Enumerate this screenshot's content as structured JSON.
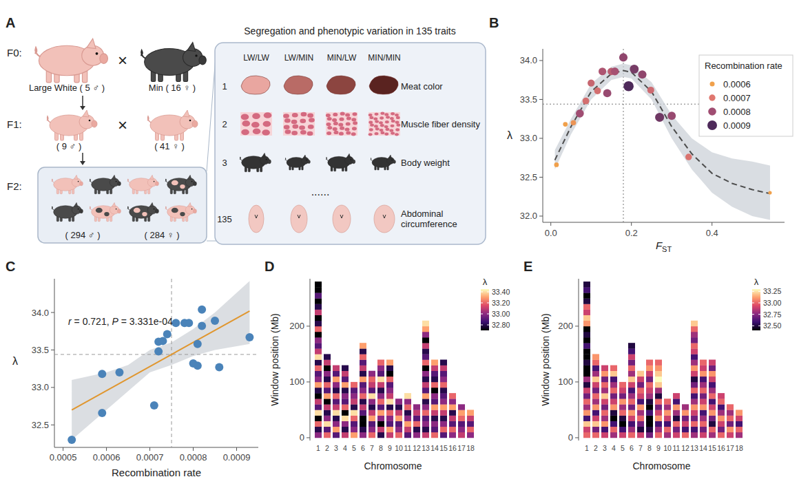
{
  "panel_labels": [
    "A",
    "B",
    "C",
    "D",
    "E"
  ],
  "diagram": {
    "generations": [
      {
        "label": "F0:",
        "groups": [
          {
            "label": "Large White ( 5 ♂ )"
          },
          {
            "label": "Min ( 16 ♀ )"
          }
        ]
      },
      {
        "label": "F1:",
        "groups": [
          {
            "label": "( 9 ♂ )"
          },
          {
            "label": "( 41 ♀ )"
          }
        ]
      },
      {
        "label": "F2:",
        "groups": [
          {
            "label": "( 294 ♂ )"
          },
          {
            "label": "( 284 ♀ )"
          }
        ]
      }
    ],
    "cross_symbol": "×",
    "traits_box": {
      "title": "Segregation and phenotypic variation in 135 traits",
      "genotypes": [
        "LW/LW",
        "LW/MIN",
        "MIN/LW",
        "MIN/MIN"
      ],
      "traits": [
        {
          "number": "1",
          "name": "Meat color"
        },
        {
          "number": "2",
          "name": "Muscle fiber density"
        },
        {
          "number": "3",
          "name": "Body weight"
        },
        {
          "number": "135",
          "name": "Abdominal circumference"
        }
      ],
      "ellipsis": "......"
    }
  },
  "chart_data": [
    {
      "type": "scatter",
      "x_label": "FST",
      "y_label": "λ",
      "xlim": [
        -0.02,
        0.58
      ],
      "ylim": [
        31.92,
        34.15
      ],
      "xticks": [
        {
          "value": 0,
          "label": "0.0"
        },
        0.2,
        0.4
      ],
      "yticks": [
        {
          "value": 32,
          "label": "32.0"
        },
        32.5,
        {
          "value": 33,
          "label": "33.0"
        },
        33.5,
        {
          "value": 34,
          "label": "34.0"
        }
      ],
      "x": [
        0.014,
        0.036,
        0.056,
        0.072,
        0.087,
        0.1,
        0.116,
        0.128,
        0.14,
        0.15,
        0.159,
        0.18,
        0.193,
        0.207,
        0.227,
        0.248,
        0.27,
        0.3,
        0.342,
        0.544
      ],
      "values": [
        32.66,
        33.18,
        33.2,
        33.32,
        33.48,
        33.71,
        33.61,
        33.86,
        33.58,
        33.86,
        33.86,
        34.04,
        33.67,
        33.89,
        33.82,
        33.62,
        33.27,
        33.29,
        32.76,
        32.3
      ],
      "recombination_rate": [
        0.00059,
        0.00059,
        0.00063,
        0.0008,
        0.00072,
        0.00074,
        0.00072,
        0.00078,
        0.00081,
        0.00076,
        0.00079,
        0.00082,
        0.00093,
        0.00085,
        0.00082,
        0.00073,
        0.00086,
        0.00081,
        0.00071,
        0.00052
      ],
      "fit": {
        "x": [
          0.01,
          0.05,
          0.1,
          0.15,
          0.18,
          0.2,
          0.25,
          0.3,
          0.35,
          0.4,
          0.45,
          0.5,
          0.544
        ],
        "values": [
          32.72,
          33.15,
          33.6,
          33.83,
          33.87,
          33.85,
          33.6,
          33.15,
          32.8,
          32.55,
          32.42,
          32.34,
          32.29
        ],
        "lower": [
          32.6,
          33.05,
          33.5,
          33.75,
          33.79,
          33.77,
          33.5,
          33.0,
          32.6,
          32.3,
          32.12,
          32.0,
          31.95
        ],
        "upper": [
          32.85,
          33.25,
          33.7,
          33.92,
          33.96,
          33.94,
          33.72,
          33.3,
          33.0,
          32.82,
          32.74,
          32.7,
          32.65
        ]
      },
      "reference_lines": {
        "x": 0.18,
        "y": 33.44
      },
      "legend": "top-right",
      "color_scale": {
        "title": "Recombination rate",
        "values": [
          0.0006,
          0.0007,
          0.0008,
          0.0009
        ],
        "colors": [
          "#f0a04b",
          "#e0776f",
          "#a04d72",
          "#4e2a5a"
        ]
      }
    },
    {
      "type": "scatter",
      "x_label": "Recombination rate",
      "y_label": "λ",
      "xlim": [
        0.00048,
        0.00095
      ],
      "ylim": [
        32.2,
        34.45
      ],
      "xticks": [
        0.0005,
        0.0006,
        0.0007,
        0.0008,
        0.0009
      ],
      "yticks": [
        32.5,
        {
          "value": 33,
          "label": "33.0"
        },
        33.5,
        {
          "value": 34,
          "label": "34.0"
        }
      ],
      "color": "#4a83b9",
      "x": [
        0.00059,
        0.00059,
        0.00063,
        0.0008,
        0.00072,
        0.00074,
        0.00072,
        0.00078,
        0.00081,
        0.00076,
        0.00079,
        0.00082,
        0.00093,
        0.00085,
        0.00082,
        0.00073,
        0.00086,
        0.00081,
        0.00071,
        0.00052
      ],
      "values": [
        32.66,
        33.18,
        33.2,
        33.32,
        33.48,
        33.71,
        33.61,
        33.86,
        33.58,
        33.86,
        33.86,
        34.04,
        33.67,
        33.89,
        33.82,
        33.62,
        33.27,
        33.29,
        32.76,
        32.3
      ],
      "fit": {
        "x": [
          0.00052,
          0.00093
        ],
        "values": [
          32.7,
          34.02
        ],
        "color": "#e0962e"
      },
      "ci": {
        "x": [
          0.00052,
          0.0006,
          0.00065,
          0.0007,
          0.00075,
          0.0008,
          0.00085,
          0.00093
        ],
        "lower": [
          32.3,
          32.7,
          32.95,
          33.2,
          33.3,
          33.42,
          33.5,
          33.58
        ],
        "upper": [
          33.1,
          33.2,
          33.3,
          33.5,
          33.6,
          33.78,
          34.0,
          34.42
        ]
      },
      "annotation": "r = 0.721, P = 3.331e-04",
      "reference_lines": {
        "x": 0.00075,
        "y": 33.44
      }
    },
    {
      "type": "heatmap",
      "x_label": "Chromosome",
      "y_label": "Window position (Mb)",
      "categories": [
        "1",
        "2",
        "3",
        "4",
        "5",
        "6",
        "7",
        "8",
        "9",
        "10",
        "11",
        "12",
        "13",
        "14",
        "15",
        "16",
        "17",
        "18"
      ],
      "window_size": 10,
      "ylim": [
        -5,
        285
      ],
      "yticks": [
        0,
        100,
        200
      ],
      "cells": [
        [
          33.0,
          32.8,
          33.2,
          32.7,
          33.4,
          32.9,
          33.1,
          32.7,
          32.8,
          33.3,
          33.0,
          32.9,
          33.2,
          32.8,
          33.4,
          33.1,
          32.9,
          33.0,
          32.7,
          33.2,
          32.8,
          32.7,
          33.1,
          32.8,
          32.7,
          32.9,
          32.7,
          32.7
        ],
        [
          33.2,
          32.9,
          33.4,
          33.0,
          32.8,
          33.1,
          32.7,
          33.3,
          32.9,
          33.2,
          32.8,
          33.0,
          32.7,
          33.1,
          32.8
        ],
        [
          32.9,
          33.3,
          33.0,
          32.8,
          33.4,
          33.1,
          32.9,
          33.2,
          32.8,
          33.0,
          33.3,
          32.9,
          33.1
        ],
        [
          33.1,
          32.8,
          33.0,
          33.4,
          32.7,
          33.2,
          32.9,
          33.0,
          32.8,
          33.3,
          32.9,
          33.1,
          32.8
        ],
        [
          33.3,
          33.0,
          32.9,
          33.2,
          33.4,
          32.8,
          33.1,
          33.0,
          32.9,
          33.2
        ],
        [
          33.0,
          32.8,
          32.7,
          32.7,
          32.9,
          33.1,
          32.8,
          33.2,
          33.0,
          32.9,
          33.3,
          32.8,
          33.1,
          32.9,
          33.2,
          32.8,
          33.3
        ],
        [
          33.2,
          33.0,
          32.9,
          33.3,
          33.1,
          32.8,
          33.0,
          33.4,
          32.9,
          33.1,
          33.2,
          33.0
        ],
        [
          32.8,
          33.1,
          32.7,
          33.0,
          33.3,
          32.9,
          33.2,
          33.0,
          32.8,
          33.1,
          33.4,
          32.9,
          33.0,
          33.2
        ],
        [
          33.1,
          33.3,
          32.9,
          33.0,
          33.2,
          32.8,
          33.4,
          33.1,
          33.0,
          32.9,
          33.2,
          32.7,
          32.8,
          33.3
        ],
        [
          33.2,
          33.0,
          32.9,
          33.3,
          33.1,
          32.8,
          33.0
        ],
        [
          32.9,
          33.1,
          33.3,
          33.0,
          32.8,
          33.2,
          33.0,
          33.4
        ],
        [
          33.0,
          32.8,
          33.2,
          32.9,
          33.1,
          33.0
        ],
        [
          33.1,
          32.8,
          33.0,
          32.9,
          33.2,
          33.0,
          32.8,
          33.3,
          32.9,
          33.1,
          32.8,
          33.0,
          32.7,
          33.2,
          32.9,
          32.8,
          33.1,
          32.7,
          33.0,
          33.3,
          33.4
        ],
        [
          33.2,
          32.9,
          33.0,
          32.8,
          33.1,
          33.3,
          32.9,
          33.0,
          32.7,
          33.2,
          32.8,
          32.9,
          33.1,
          33.3
        ],
        [
          32.9,
          33.2,
          33.0,
          32.8,
          33.1,
          33.3,
          33.0,
          32.9,
          32.8,
          33.2,
          33.0,
          32.9,
          33.1,
          32.8
        ],
        [
          33.0,
          33.2,
          32.9,
          33.1,
          32.8,
          33.3,
          33.0,
          33.2
        ],
        [
          33.1,
          33.0,
          32.9,
          33.2,
          33.3,
          33.0
        ],
        [
          33.0,
          33.2,
          32.9,
          33.1,
          33.3
        ]
      ],
      "color_scale": {
        "title": "λ",
        "range": [
          32.7,
          33.45
        ],
        "ticks": [
          {
            "value": 33.4,
            "label": "33.40"
          },
          {
            "value": 33.2,
            "label": "33.20"
          },
          {
            "value": 33.0,
            "label": "33.00"
          },
          {
            "value": 32.8,
            "label": "32.80"
          }
        ],
        "colors": [
          "#000004",
          "#3b0f70",
          "#8c2981",
          "#de4968",
          "#fe9f6d",
          "#fcfdbf"
        ]
      }
    },
    {
      "type": "heatmap",
      "x_label": "Chromosome",
      "y_label": "Window position (Mb)",
      "categories": [
        "1",
        "2",
        "3",
        "4",
        "5",
        "6",
        "7",
        "8",
        "9",
        "10",
        "11",
        "12",
        "13",
        "14",
        "15",
        "16",
        "17",
        "18"
      ],
      "window_size": 10,
      "ylim": [
        -5,
        285
      ],
      "yticks": [
        0,
        100,
        200
      ],
      "cells": [
        [
          33.0,
          32.9,
          33.2,
          32.6,
          33.1,
          32.8,
          33.0,
          32.7,
          32.9,
          32.5,
          32.8,
          32.4,
          32.4,
          32.5,
          32.4,
          32.4,
          32.6,
          32.4,
          32.5,
          32.4,
          33.1,
          33.2,
          32.9,
          33.0,
          32.5,
          32.4,
          32.6,
          32.5
        ],
        [
          33.0,
          32.7,
          33.2,
          32.9,
          32.6,
          33.1,
          32.8,
          33.0,
          32.7,
          32.9,
          33.2,
          32.8,
          32.6,
          33.0,
          33.1
        ],
        [
          32.9,
          32.6,
          33.1,
          32.8,
          33.0,
          32.7,
          32.9,
          33.2,
          32.8,
          33.0,
          32.7,
          33.1,
          32.9
        ],
        [
          32.8,
          33.0,
          32.6,
          32.4,
          32.5,
          33.1,
          32.9,
          32.7,
          33.0,
          32.8,
          32.6,
          33.2,
          33.0
        ],
        [
          32.9,
          32.6,
          32.4,
          32.5,
          33.0,
          32.8,
          33.1,
          32.7,
          32.9,
          33.0
        ],
        [
          33.0,
          32.8,
          32.6,
          32.9,
          33.1,
          32.7,
          33.0,
          32.8,
          32.6,
          32.9,
          33.2,
          32.8,
          33.0,
          32.7,
          32.9,
          32.6,
          32.5
        ],
        [
          32.9,
          32.5,
          32.7,
          33.0,
          32.8,
          33.1,
          32.6,
          32.9,
          33.0,
          32.7,
          32.9,
          33.2
        ],
        [
          32.7,
          32.5,
          32.4,
          32.4,
          32.6,
          32.4,
          32.5,
          32.8,
          32.9,
          33.0,
          32.7,
          32.9,
          33.1,
          33.0
        ],
        [
          33.0,
          32.8,
          32.6,
          33.1,
          32.9,
          32.7,
          33.0,
          32.5,
          32.8,
          33.2,
          33.3,
          33.2,
          33.1,
          33.0
        ],
        [
          32.8,
          33.0,
          32.6,
          32.9,
          33.1,
          32.8,
          33.0
        ],
        [
          32.9,
          32.7,
          33.0,
          32.5,
          32.8,
          33.1,
          32.6,
          32.9
        ],
        [
          33.0,
          32.6,
          32.9,
          32.7,
          33.1,
          32.8
        ],
        [
          32.8,
          32.6,
          33.0,
          32.7,
          32.9,
          33.1,
          32.8,
          32.6,
          33.0,
          32.7,
          32.5,
          32.9,
          33.1,
          32.8,
          32.6,
          32.9,
          33.0,
          32.7,
          32.8,
          33.0,
          33.2
        ],
        [
          32.9,
          32.7,
          33.0,
          32.8,
          32.6,
          33.1,
          32.9,
          32.7,
          33.0,
          32.8,
          32.6,
          33.1,
          32.9,
          33.0
        ],
        [
          32.8,
          33.0,
          32.5,
          32.7,
          33.1,
          32.9,
          32.6,
          33.0,
          32.8,
          32.6,
          32.9,
          33.1,
          32.7,
          32.9
        ],
        [
          33.0,
          32.7,
          32.9,
          33.1,
          32.8,
          32.6,
          33.0,
          32.9
        ],
        [
          32.9,
          33.1,
          32.7,
          33.0,
          32.8,
          33.0
        ],
        [
          32.8,
          33.0,
          32.6,
          32.9,
          33.1
        ]
      ],
      "color_scale": {
        "title": "λ",
        "range": [
          32.4,
          33.3
        ],
        "ticks": [
          {
            "value": 33.25,
            "label": "33.25"
          },
          {
            "value": 33.0,
            "label": "33.00"
          },
          {
            "value": 32.75,
            "label": "32.75"
          },
          {
            "value": 32.5,
            "label": "32.50"
          }
        ],
        "colors": [
          "#000004",
          "#3b0f70",
          "#8c2981",
          "#de4968",
          "#fe9f6d",
          "#fcfdbf"
        ]
      }
    }
  ]
}
